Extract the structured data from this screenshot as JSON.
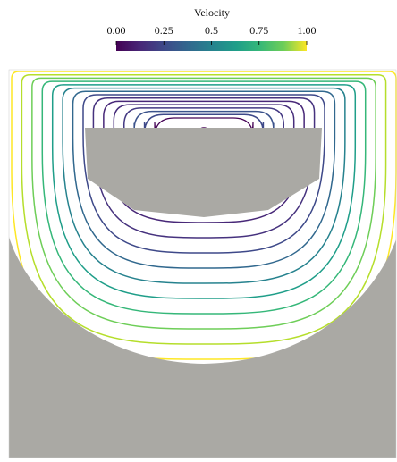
{
  "colorbar": {
    "title": "Velocity",
    "range": [
      0,
      1
    ],
    "ticks": [
      {
        "value": 0,
        "label": "0.00"
      },
      {
        "value": 0.25,
        "label": "0.25"
      },
      {
        "value": 0.5,
        "label": "0.5"
      },
      {
        "value": 0.75,
        "label": "0.75"
      },
      {
        "value": 1,
        "label": "1.00"
      }
    ]
  }
}
